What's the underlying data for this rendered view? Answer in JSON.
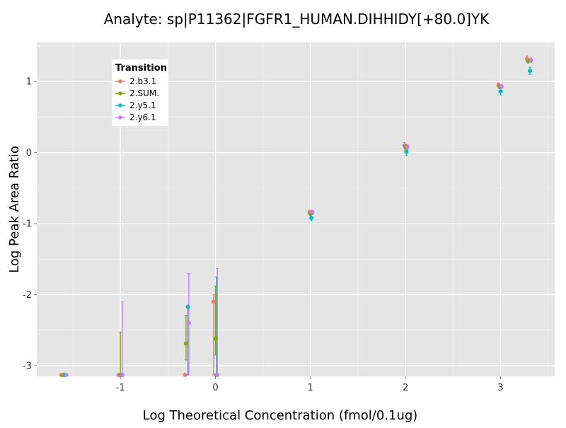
{
  "chart_data": {
    "type": "scatter",
    "title": "Analyte: sp|P11362|FGFR1_HUMAN.DIHHIDY[+80.0]YK",
    "xlabel": "Log Theoretical Concentration (fmol/0.1ug)",
    "ylabel": "Log Peak Area Ratio",
    "xlim": [
      -1.88,
      3.57
    ],
    "ylim": [
      -3.15,
      1.55
    ],
    "x_ticks": [
      -1,
      0,
      1,
      2,
      3
    ],
    "x_tick_labels": [
      "-1",
      "0",
      "1",
      "2",
      "3"
    ],
    "y_ticks": [
      -3,
      -2,
      -1,
      0,
      1
    ],
    "y_tick_labels": [
      "-3",
      "-2",
      "-1",
      "0",
      "1"
    ],
    "grid": true,
    "legend": {
      "title": "Transition",
      "position": "top-left"
    },
    "series": [
      {
        "name": "2.b3.1",
        "color": "#F8766D",
        "points": [
          {
            "x": -1.62,
            "y": -3.13,
            "lo": -3.13,
            "hi": -3.13
          },
          {
            "x": -1.02,
            "y": -3.13,
            "lo": -3.13,
            "hi": -3.13
          },
          {
            "x": -0.32,
            "y": -3.13,
            "lo": -3.13,
            "hi": -3.13
          },
          {
            "x": -0.02,
            "y": -2.1,
            "lo": -3.13,
            "hi": -2.0
          },
          {
            "x": 0.99,
            "y": -0.84,
            "lo": -0.87,
            "hi": -0.81
          },
          {
            "x": 1.99,
            "y": 0.1,
            "lo": 0.05,
            "hi": 0.14
          },
          {
            "x": 2.98,
            "y": 0.95,
            "lo": 0.92,
            "hi": 0.98
          },
          {
            "x": 3.28,
            "y": 1.32,
            "lo": 1.28,
            "hi": 1.36
          }
        ]
      },
      {
        "name": "2.SUM.",
        "color": "#7CAE00",
        "points": [
          {
            "x": -1.6,
            "y": -3.13,
            "lo": -3.13,
            "hi": -3.13
          },
          {
            "x": -1.0,
            "y": -3.13,
            "lo": -3.13,
            "hi": -2.53
          },
          {
            "x": -0.31,
            "y": -2.69,
            "lo": -2.92,
            "hi": -2.29
          },
          {
            "x": 0.0,
            "y": -2.62,
            "lo": -2.85,
            "hi": -1.88
          },
          {
            "x": 1.0,
            "y": -0.86,
            "lo": -0.89,
            "hi": -0.83
          },
          {
            "x": 2.0,
            "y": 0.08,
            "lo": 0.03,
            "hi": 0.12
          },
          {
            "x": 2.99,
            "y": 0.93,
            "lo": 0.9,
            "hi": 0.96
          },
          {
            "x": 3.29,
            "y": 1.29,
            "lo": 1.26,
            "hi": 1.32
          }
        ]
      },
      {
        "name": "2.y5.1",
        "color": "#00BFC4",
        "points": [
          {
            "x": -1.58,
            "y": -3.13,
            "lo": -3.13,
            "hi": -3.13
          },
          {
            "x": -0.99,
            "y": -3.13,
            "lo": -3.13,
            "hi": -3.13
          },
          {
            "x": -0.29,
            "y": -2.17,
            "lo": -3.13,
            "hi": -2.15
          },
          {
            "x": 0.01,
            "y": -3.13,
            "lo": -3.13,
            "hi": -1.75
          },
          {
            "x": 1.01,
            "y": -0.92,
            "lo": -0.96,
            "hi": -0.87
          },
          {
            "x": 2.01,
            "y": 0.01,
            "lo": -0.04,
            "hi": 0.08
          },
          {
            "x": 3.0,
            "y": 0.86,
            "lo": 0.81,
            "hi": 0.9
          },
          {
            "x": 3.31,
            "y": 1.15,
            "lo": 1.1,
            "hi": 1.2
          }
        ]
      },
      {
        "name": "2.y6.1",
        "color": "#C77CFF",
        "points": [
          {
            "x": -1.57,
            "y": -3.13,
            "lo": -3.13,
            "hi": -3.13
          },
          {
            "x": -0.98,
            "y": -3.13,
            "lo": -3.13,
            "hi": -2.1
          },
          {
            "x": -0.28,
            "y": -2.4,
            "lo": -3.13,
            "hi": -1.7
          },
          {
            "x": 0.02,
            "y": -3.13,
            "lo": -3.13,
            "hi": -1.63
          },
          {
            "x": 1.02,
            "y": -0.84,
            "lo": -0.87,
            "hi": -0.81
          },
          {
            "x": 2.02,
            "y": 0.08,
            "lo": 0.04,
            "hi": 0.11
          },
          {
            "x": 3.01,
            "y": 0.93,
            "lo": 0.9,
            "hi": 0.96
          },
          {
            "x": 3.32,
            "y": 1.3,
            "lo": 1.27,
            "hi": 1.33
          }
        ]
      }
    ]
  }
}
